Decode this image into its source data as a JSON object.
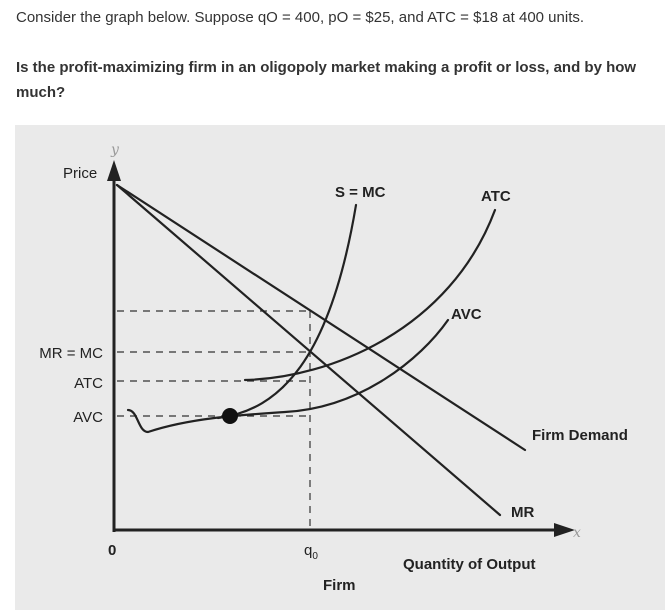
{
  "question": {
    "intro": "Consider the graph below. Suppose qO = 400, pO = $25, and ATC = $18 at 400 units.",
    "prompt": "Is the profit-maximizing firm in an oligopoly market making a profit or loss, and by how much?"
  },
  "graph": {
    "y_axis_letter": "y",
    "x_axis_letter": "x",
    "price_label": "Price",
    "origin_label": "0",
    "y_ticks": [
      "MR = MC",
      "ATC",
      "AVC"
    ],
    "q_label": "q",
    "q_subscript": "0",
    "curves": {
      "mc": "S = MC",
      "atc": "ATC",
      "avc": "AVC",
      "demand": "Firm Demand",
      "mr": "MR"
    },
    "x_axis_label": "Quantity of Output",
    "caption": "Firm",
    "colors": {
      "panel_background": "#eaeaea",
      "curve": "#222222",
      "point": "#111111",
      "axis_letter": "#9a9a9a"
    }
  }
}
